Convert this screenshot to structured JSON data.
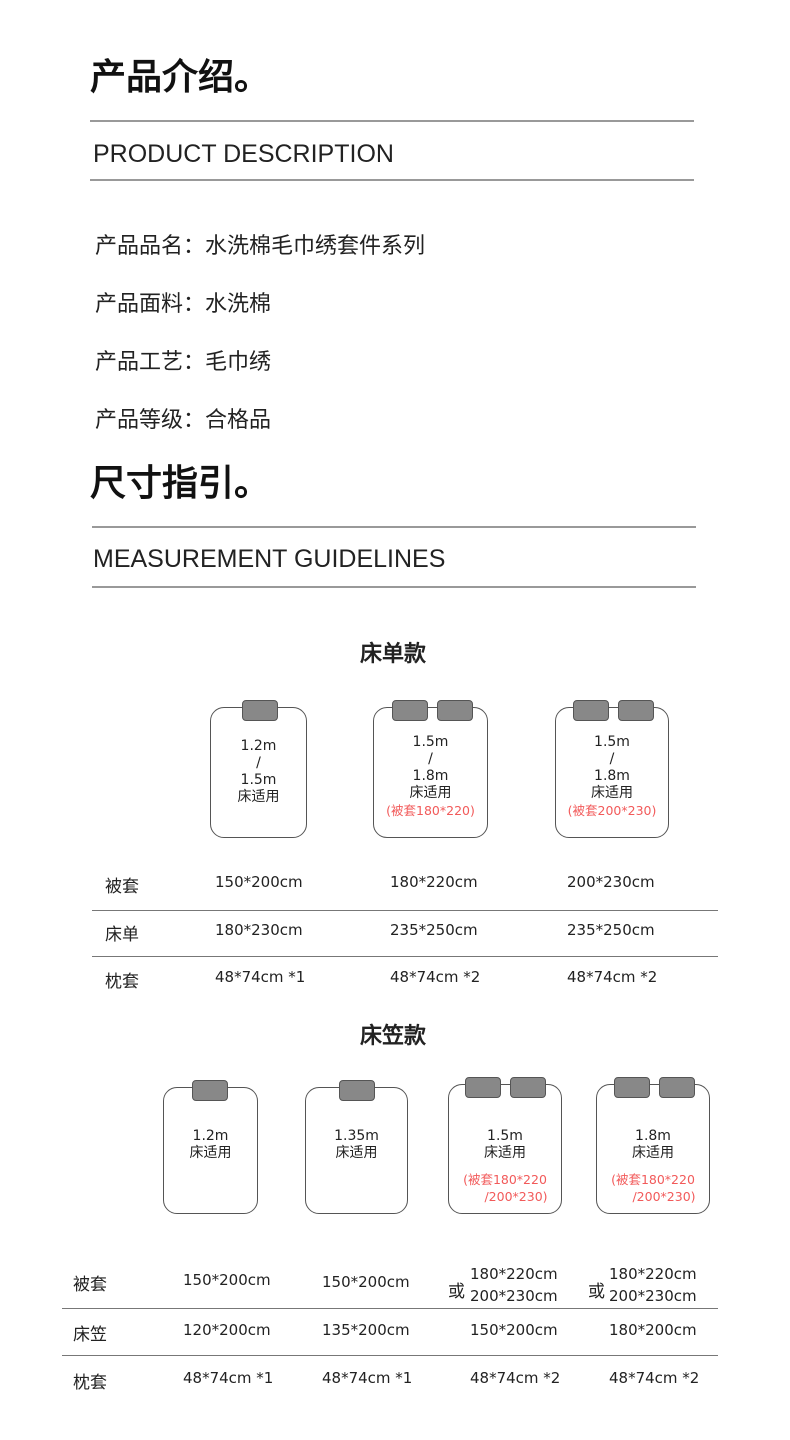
{
  "intro": {
    "title": "产品介绍。",
    "subtitle": "PRODUCT DESCRIPTION",
    "rows": [
      {
        "label": "产品品名：",
        "value": "水洗棉毛巾绣套件系列"
      },
      {
        "label": "产品面料：",
        "value": "水洗棉"
      },
      {
        "label": "产品工艺：",
        "value": "毛巾绣"
      },
      {
        "label": "产品等级：",
        "value": "合格品"
      }
    ]
  },
  "size": {
    "title": "尺寸指引。",
    "subtitle": "MEASUREMENT GUIDELINES"
  },
  "sheet": {
    "title": "床单款",
    "beds": [
      {
        "l1": "1.2m",
        "sep": "/",
        "l2": "1.5m",
        "l3": "床适用",
        "note": ""
      },
      {
        "l1": "1.5m",
        "sep": "/",
        "l2": "1.8m",
        "l3": "床适用",
        "note": "(被套180*220)"
      },
      {
        "l1": "1.5m",
        "sep": "/",
        "l2": "1.8m",
        "l3": "床适用",
        "note": "(被套200*230)"
      }
    ],
    "rows": [
      {
        "label": "被套",
        "cells": [
          "150*200cm",
          "180*220cm",
          "200*230cm"
        ]
      },
      {
        "label": "床单",
        "cells": [
          "180*230cm",
          "235*250cm",
          "235*250cm"
        ]
      },
      {
        "label": "枕套",
        "cells": [
          "48*74cm *1",
          "48*74cm *2",
          "48*74cm *2"
        ]
      }
    ]
  },
  "fitted": {
    "title": "床笠款",
    "beds": [
      {
        "l1": "1.2m",
        "l2": "床适用",
        "n1": "",
        "n2": ""
      },
      {
        "l1": "1.35m",
        "l2": "床适用",
        "n1": "",
        "n2": ""
      },
      {
        "l1": "1.5m",
        "l2": "床适用",
        "n1": "(被套180*220",
        "n2": "/200*230)"
      },
      {
        "l1": "1.8m",
        "l2": "床适用",
        "n1": "(被套180*220",
        "n2": "/200*230)"
      }
    ],
    "or": "或",
    "rows": [
      {
        "label": "被套",
        "cells": [
          "150*200cm",
          "150*200cm",
          "180*220cm",
          "200*230cm",
          "180*220cm",
          "200*230cm"
        ]
      },
      {
        "label": "床笠",
        "cells": [
          "120*200cm",
          "135*200cm",
          "150*200cm",
          "180*200cm"
        ]
      },
      {
        "label": "枕套",
        "cells": [
          "48*74cm *1",
          "48*74cm *1",
          "48*74cm *2",
          "48*74cm *2"
        ]
      }
    ]
  },
  "colors": {
    "accent_red": "#f25a5a",
    "pillow": "#888888"
  }
}
